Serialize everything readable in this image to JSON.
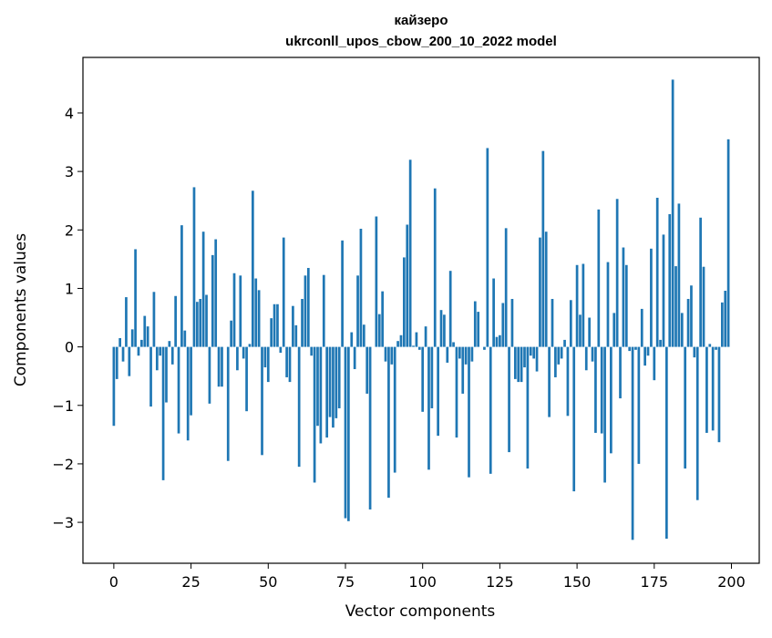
{
  "chart_data": {
    "type": "bar",
    "title_line1": "кайзеро",
    "title_line2": "ukrconll_upos_cbow_200_10_2022 model",
    "xlabel": "Vector components",
    "ylabel": "Components values",
    "xlim": [
      -10,
      209
    ],
    "ylim": [
      -3.7,
      4.95
    ],
    "xticks": [
      0,
      25,
      50,
      75,
      100,
      125,
      150,
      175,
      200
    ],
    "yticks": [
      -3,
      -2,
      -1,
      0,
      1,
      2,
      3,
      4
    ],
    "xtick_labels": [
      "0",
      "25",
      "50",
      "75",
      "100",
      "125",
      "150",
      "175",
      "200"
    ],
    "ytick_labels": [
      "−3",
      "−2",
      "−1",
      "0",
      "1",
      "2",
      "3",
      "4"
    ],
    "bar_color": "#1f77b4",
    "grid": false,
    "legend": "none",
    "x": [
      0,
      1,
      2,
      3,
      4,
      5,
      6,
      7,
      8,
      9,
      10,
      11,
      12,
      13,
      14,
      15,
      16,
      17,
      18,
      19,
      20,
      21,
      22,
      23,
      24,
      25,
      26,
      27,
      28,
      29,
      30,
      31,
      32,
      33,
      34,
      35,
      36,
      37,
      38,
      39,
      40,
      41,
      42,
      43,
      44,
      45,
      46,
      47,
      48,
      49,
      50,
      51,
      52,
      53,
      54,
      55,
      56,
      57,
      58,
      59,
      60,
      61,
      62,
      63,
      64,
      65,
      66,
      67,
      68,
      69,
      70,
      71,
      72,
      73,
      74,
      75,
      76,
      77,
      78,
      79,
      80,
      81,
      82,
      83,
      84,
      85,
      86,
      87,
      88,
      89,
      90,
      91,
      92,
      93,
      94,
      95,
      96,
      97,
      98,
      99,
      100,
      101,
      102,
      103,
      104,
      105,
      106,
      107,
      108,
      109,
      110,
      111,
      112,
      113,
      114,
      115,
      116,
      117,
      118,
      119,
      120,
      121,
      122,
      123,
      124,
      125,
      126,
      127,
      128,
      129,
      130,
      131,
      132,
      133,
      134,
      135,
      136,
      137,
      138,
      139,
      140,
      141,
      142,
      143,
      144,
      145,
      146,
      147,
      148,
      149,
      150,
      151,
      152,
      153,
      154,
      155,
      156,
      157,
      158,
      159,
      160,
      161,
      162,
      163,
      164,
      165,
      166,
      167,
      168,
      169,
      170,
      171,
      172,
      173,
      174,
      175,
      176,
      177,
      178,
      179,
      180,
      181,
      182,
      183,
      184,
      185,
      186,
      187,
      188,
      189,
      190,
      191,
      192,
      193,
      194,
      195,
      196,
      197,
      198,
      199
    ],
    "values": [
      -1.35,
      -0.55,
      0.15,
      -0.25,
      0.85,
      -0.5,
      0.3,
      1.67,
      -0.15,
      0.12,
      0.53,
      0.35,
      -1.02,
      0.94,
      -0.4,
      -0.15,
      -2.28,
      -0.95,
      0.1,
      -0.3,
      0.87,
      -1.48,
      2.08,
      0.28,
      -1.6,
      -1.17,
      2.73,
      0.77,
      0.82,
      1.97,
      0.89,
      -0.97,
      1.57,
      1.84,
      -0.68,
      -0.68,
      0.0,
      -1.95,
      0.45,
      1.26,
      -0.4,
      1.22,
      -0.2,
      -1.1,
      0.05,
      2.67,
      1.17,
      0.97,
      -1.85,
      -0.35,
      -0.6,
      0.49,
      0.73,
      0.73,
      -0.1,
      1.87,
      -0.52,
      -0.6,
      0.7,
      0.37,
      -2.05,
      0.82,
      1.22,
      1.35,
      -0.15,
      -2.32,
      -1.35,
      -1.65,
      1.23,
      -1.55,
      -1.2,
      -1.38,
      -1.22,
      -1.05,
      1.82,
      -2.93,
      -2.98,
      0.25,
      -0.38,
      1.22,
      2.02,
      0.38,
      -0.8,
      -2.78,
      0.0,
      2.23,
      0.56,
      0.95,
      -0.25,
      -2.58,
      -0.3,
      -2.15,
      0.1,
      0.2,
      1.53,
      2.09,
      3.2,
      0.02,
      0.25,
      -0.05,
      -1.11,
      0.35,
      -2.1,
      -1.05,
      2.71,
      -1.52,
      0.63,
      0.55,
      -0.27,
      1.3,
      0.08,
      -1.55,
      -0.2,
      -0.8,
      -0.3,
      -2.23,
      -0.25,
      0.78,
      0.6,
      0.0,
      -0.05,
      3.4,
      -2.17,
      1.17,
      0.17,
      0.2,
      0.75,
      2.03,
      -1.8,
      0.82,
      -0.55,
      -0.6,
      -0.6,
      -0.35,
      -2.08,
      -0.15,
      -0.2,
      -0.42,
      1.87,
      3.35,
      1.97,
      -1.2,
      0.82,
      -0.52,
      -0.3,
      -0.2,
      0.12,
      -1.18,
      0.8,
      -2.47,
      1.4,
      0.55,
      1.42,
      -0.4,
      0.5,
      -0.25,
      -1.47,
      2.35,
      -1.48,
      -2.32,
      1.45,
      -1.82,
      0.58,
      2.53,
      -0.88,
      1.7,
      1.4,
      -0.07,
      -3.3,
      -0.05,
      -2.0,
      0.65,
      -0.32,
      -0.15,
      1.68,
      -0.57,
      2.55,
      0.12,
      1.92,
      -3.28,
      2.27,
      4.57,
      1.38,
      2.45,
      0.58,
      -2.08,
      0.82,
      1.05,
      -0.18,
      -2.62,
      2.21,
      1.37,
      -1.47,
      0.05,
      -1.43,
      -0.05,
      -1.63,
      0.76,
      0.96,
      3.55
    ]
  }
}
